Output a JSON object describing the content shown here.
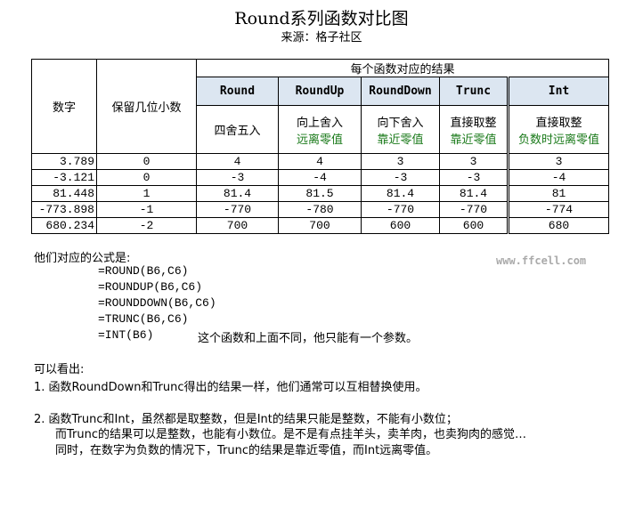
{
  "title": "Round系列函数对比图",
  "subtitle": "来源：格子社区",
  "table": {
    "col_number": "数字",
    "col_digits": "保留几位小数",
    "group_header": "每个函数对应的结果",
    "functions": [
      {
        "name": "Round",
        "desc1": "四舍五入",
        "desc2": ""
      },
      {
        "name": "RoundUp",
        "desc1": "向上舍入",
        "desc2": "远离零值"
      },
      {
        "name": "RoundDown",
        "desc1": "向下舍入",
        "desc2": "靠近零值"
      },
      {
        "name": "Trunc",
        "desc1": "直接取整",
        "desc2": "靠近零值"
      },
      {
        "name": "Int",
        "desc1": "直接取整",
        "desc2": "负数时远离零值"
      }
    ],
    "rows": [
      [
        "3.789",
        "0",
        "4",
        "4",
        "3",
        "3",
        "3"
      ],
      [
        "-3.121",
        "0",
        "-3",
        "-4",
        "-3",
        "-3",
        "-4"
      ],
      [
        "81.448",
        "1",
        "81.4",
        "81.5",
        "81.4",
        "81.4",
        "81"
      ],
      [
        "-773.898",
        "-1",
        "-770",
        "-780",
        "-770",
        "-770",
        "-774"
      ],
      [
        "680.234",
        "-2",
        "700",
        "700",
        "600",
        "600",
        "680"
      ]
    ]
  },
  "formulas_heading": "他们对应的公式是:",
  "formulas": [
    "=ROUND(B6,C6)",
    "=ROUNDUP(B6,C6)",
    "=ROUNDDOWN(B6,C6)",
    "=TRUNC(B6,C6)",
    "=INT(B6)"
  ],
  "int_note": "这个函数和上面不同，他只能有一个参数。",
  "watermark": "www.ffcell.com",
  "conclusion_heading": "可以看出:",
  "point1": "1. 函数RoundDown和Trunc得出的结果一样，他们通常可以互相替换使用。",
  "point2": [
    "2. 函数Trunc和Int，虽然都是取整数，但是Int的结果只能是整数，不能有小数位；",
    "而Trunc的结果可以是整数，也能有小数位。是不是有点挂羊头，卖羊肉，也卖狗肉的感觉…",
    "同时，在数字为负数的情况下，Trunc的结果是靠近零值，而Int远离零值。"
  ],
  "colors": {
    "header_bg": "#dce6f1",
    "green_text": "#1a7a1a"
  }
}
